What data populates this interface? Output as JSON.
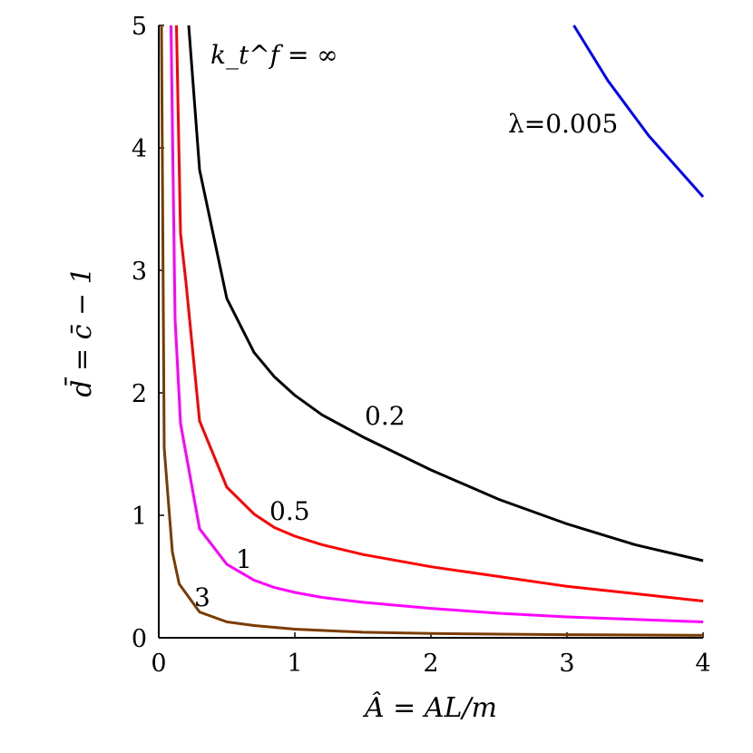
{
  "chart_data": {
    "type": "line",
    "xlabel": "Â = AL/m",
    "ylabel": "d̄ = c̄ − 1",
    "xlim": [
      0,
      4
    ],
    "ylim": [
      0,
      5
    ],
    "xticks": [
      "0",
      "1",
      "2",
      "3",
      "4"
    ],
    "yticks": [
      "0",
      "1",
      "2",
      "3",
      "4",
      "5"
    ],
    "grid": false,
    "annotations": {
      "top_left": "k_t^f = ∞",
      "blue_curve": "λ=0.005"
    },
    "series": [
      {
        "name": "λ=0.005",
        "color": "#0000ff",
        "x": [
          3.05,
          3.3,
          3.6,
          4.0
        ],
        "y": [
          5.0,
          4.55,
          4.1,
          3.6
        ]
      },
      {
        "name": "0.2",
        "color": "#000000",
        "x": [
          0.22,
          0.3,
          0.5,
          0.7,
          0.85,
          1.0,
          1.2,
          1.5,
          2.0,
          2.5,
          3.0,
          3.5,
          4.0
        ],
        "y": [
          5.0,
          3.82,
          2.77,
          2.33,
          2.13,
          1.98,
          1.82,
          1.64,
          1.37,
          1.13,
          0.93,
          0.76,
          0.63
        ]
      },
      {
        "name": "0.5",
        "color": "#ff0000",
        "x": [
          0.13,
          0.16,
          0.2,
          0.3,
          0.5,
          0.7,
          0.85,
          1.0,
          1.2,
          1.5,
          2.0,
          2.5,
          3.0,
          3.5,
          4.0
        ],
        "y": [
          5.0,
          3.3,
          2.9,
          1.77,
          1.23,
          1.01,
          0.9,
          0.83,
          0.76,
          0.68,
          0.58,
          0.5,
          0.42,
          0.36,
          0.3
        ]
      },
      {
        "name": "1",
        "color": "#ff00ff",
        "x": [
          0.09,
          0.12,
          0.16,
          0.3,
          0.5,
          0.7,
          0.85,
          1.0,
          1.2,
          1.5,
          2.0,
          2.5,
          3.0,
          3.5,
          4.0
        ],
        "y": [
          5.0,
          2.6,
          1.75,
          0.89,
          0.6,
          0.47,
          0.41,
          0.37,
          0.33,
          0.29,
          0.24,
          0.2,
          0.17,
          0.15,
          0.13
        ]
      },
      {
        "name": "3",
        "color": "#7a3c00",
        "x": [
          0.02,
          0.04,
          0.07,
          0.1,
          0.15,
          0.3,
          0.5,
          0.7,
          1.0,
          1.5,
          2.0,
          3.0,
          4.0
        ],
        "y": [
          5.0,
          1.55,
          1.12,
          0.7,
          0.44,
          0.21,
          0.13,
          0.1,
          0.07,
          0.045,
          0.035,
          0.025,
          0.02
        ]
      }
    ]
  },
  "curve_labels": {
    "lambda": "λ=0.005",
    "c02": "0.2",
    "c05": "0.5",
    "c1": "1",
    "c3": "3"
  }
}
